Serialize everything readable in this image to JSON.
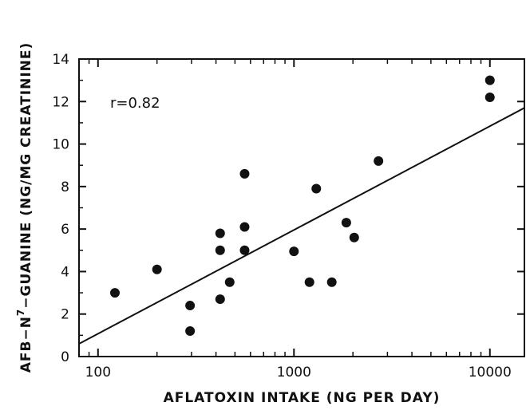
{
  "chart_data": {
    "type": "scatter",
    "xlabel": "AFLATOXIN INTAKE (NG PER DAY)",
    "ylabel": {
      "prefix": "AFB−N",
      "superscript": "7",
      "suffix": "−GUANINE (NG/MG CREATININE)"
    },
    "x_scale": "log",
    "xlim": [
      80,
      15000
    ],
    "ylim": [
      0,
      14
    ],
    "x_ticks": [
      100,
      1000,
      10000
    ],
    "x_tick_labels": [
      "100",
      "1000",
      "10000"
    ],
    "y_ticks": [
      0,
      2,
      4,
      6,
      8,
      10,
      12,
      14
    ],
    "y_tick_labels": [
      "0",
      "2",
      "4",
      "6",
      "8",
      "10",
      "12",
      "14"
    ],
    "annotation": "r=0.82",
    "points": [
      {
        "x": 122,
        "y": 3.0
      },
      {
        "x": 200,
        "y": 4.1
      },
      {
        "x": 295,
        "y": 2.4
      },
      {
        "x": 295,
        "y": 1.2
      },
      {
        "x": 420,
        "y": 5.8
      },
      {
        "x": 420,
        "y": 5.0
      },
      {
        "x": 420,
        "y": 2.7
      },
      {
        "x": 470,
        "y": 3.5
      },
      {
        "x": 560,
        "y": 8.6
      },
      {
        "x": 560,
        "y": 6.1
      },
      {
        "x": 560,
        "y": 5.0
      },
      {
        "x": 1000,
        "y": 4.95
      },
      {
        "x": 1200,
        "y": 3.5
      },
      {
        "x": 1300,
        "y": 7.9
      },
      {
        "x": 1560,
        "y": 3.5
      },
      {
        "x": 1850,
        "y": 6.3
      },
      {
        "x": 2030,
        "y": 5.6
      },
      {
        "x": 2700,
        "y": 9.2
      },
      {
        "x": 10000,
        "y": 13.0
      },
      {
        "x": 10000,
        "y": 12.2
      }
    ],
    "fit_line": [
      {
        "x": 80,
        "y": 0.6
      },
      {
        "x": 15000,
        "y": 11.7
      }
    ]
  }
}
